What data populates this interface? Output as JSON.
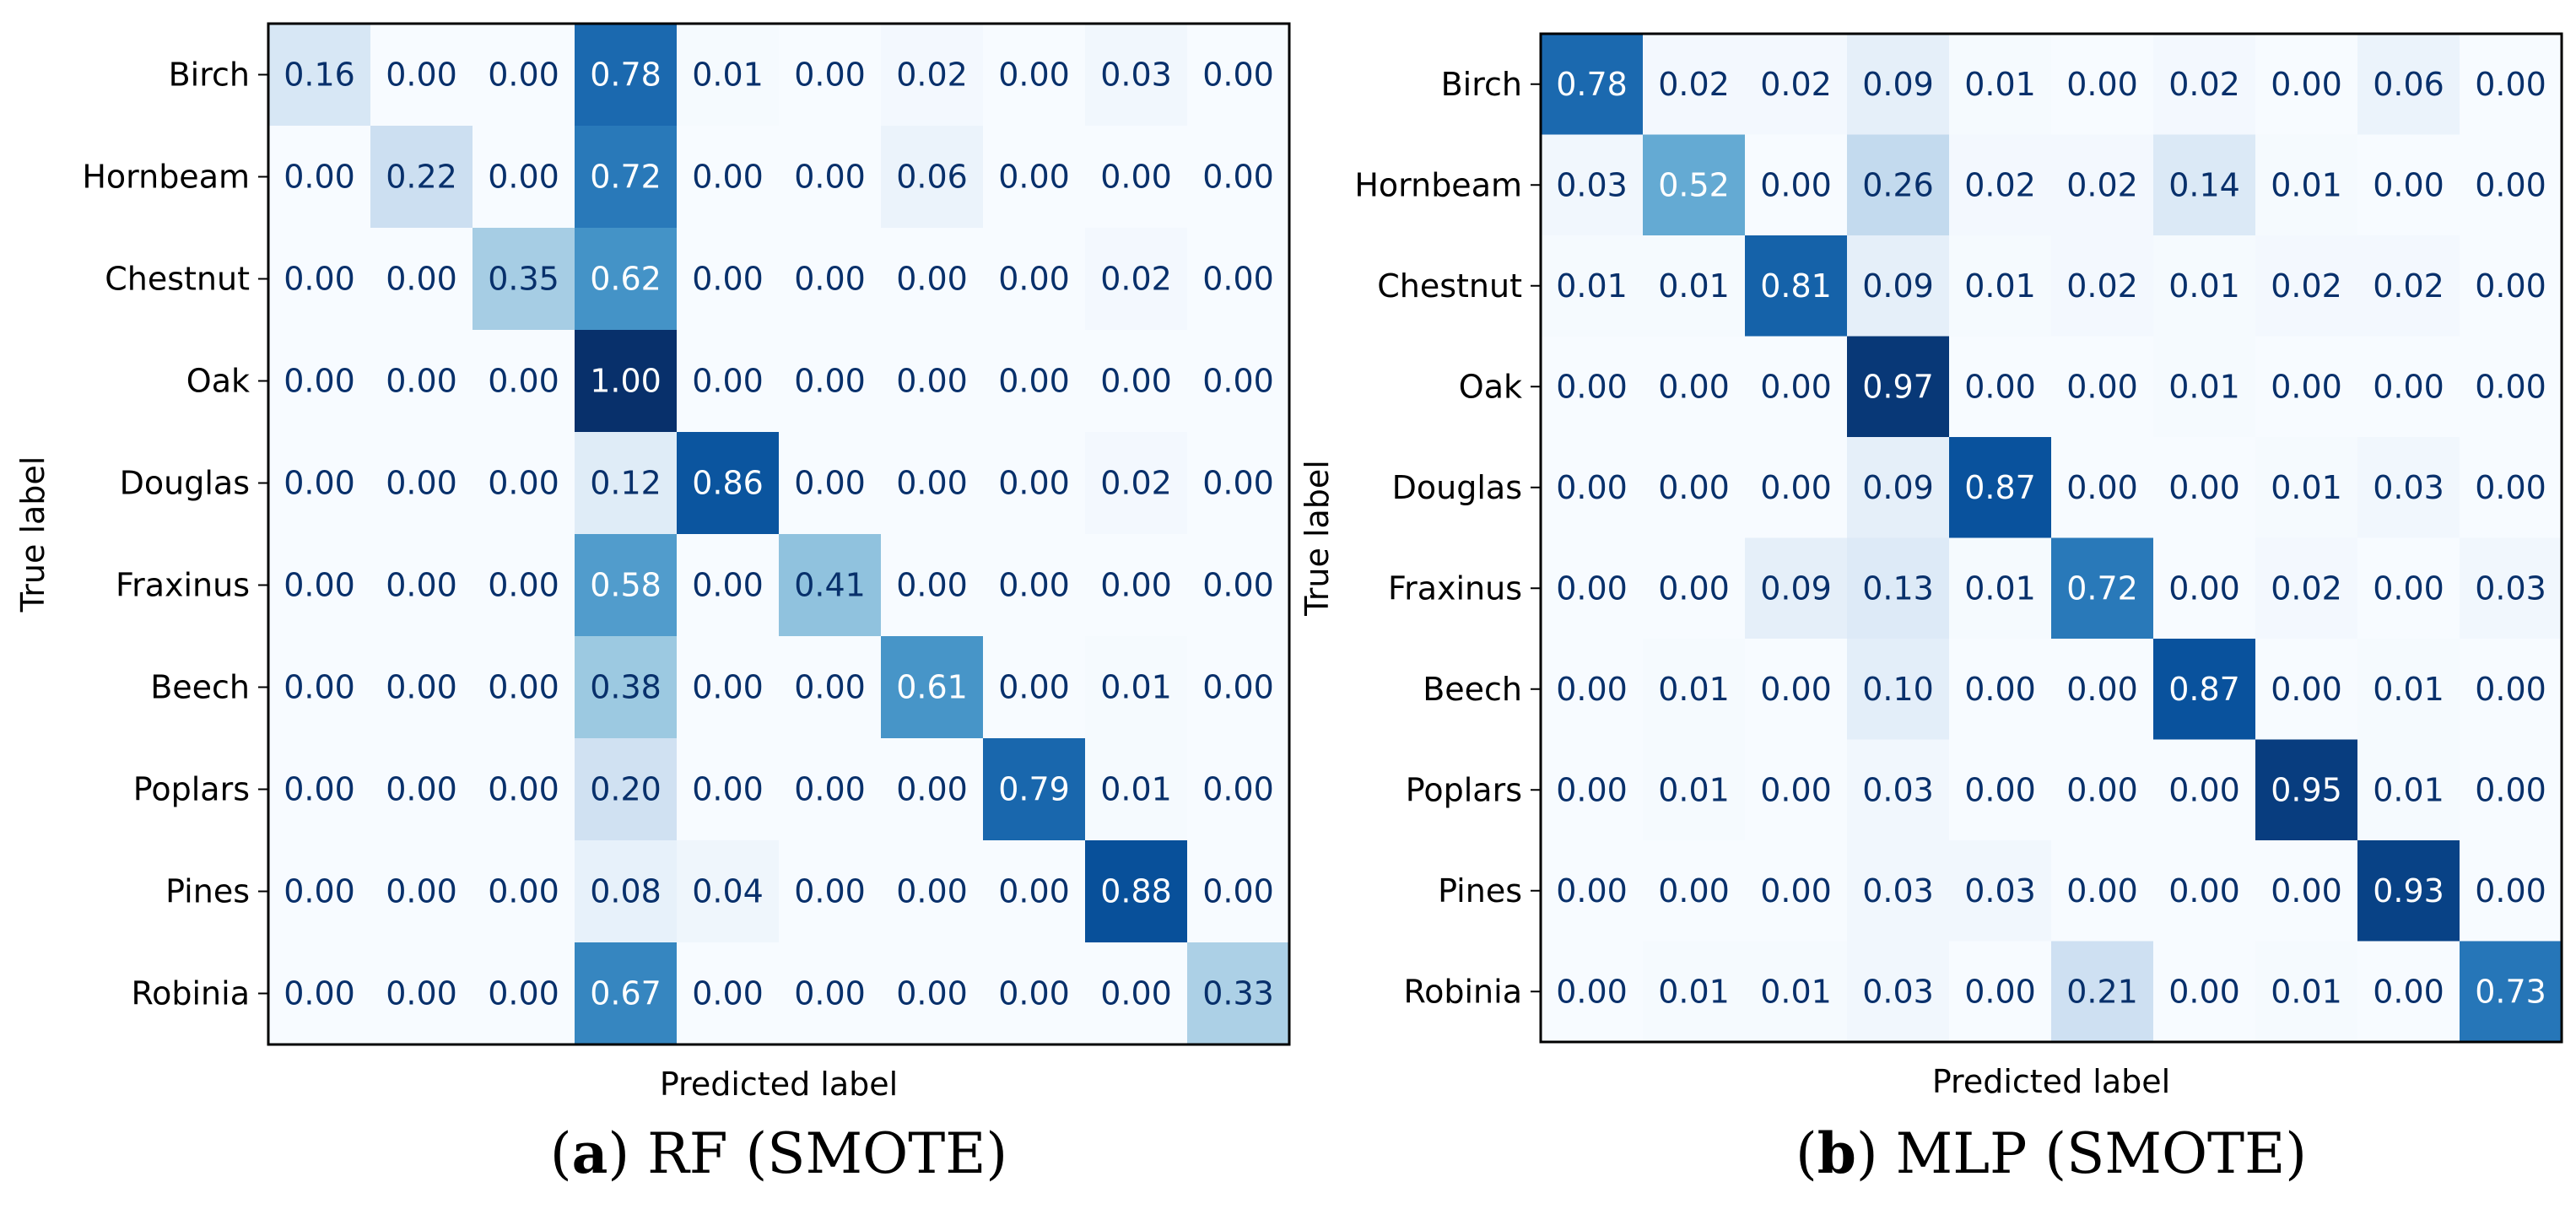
{
  "chart_data": [
    {
      "type": "heatmap",
      "panel_letter": "a",
      "caption": "RF (SMOTE)",
      "xlabel": "Predicted label",
      "ylabel": "True label",
      "row_labels": [
        "Birch",
        "Hornbeam",
        "Chestnut",
        "Oak",
        "Douglas",
        "Fraxinus",
        "Beech",
        "Poplars",
        "Pines",
        "Robinia"
      ],
      "value_range": [
        0,
        1
      ],
      "colormap": "Blues",
      "values": [
        [
          0.16,
          0.0,
          0.0,
          0.78,
          0.01,
          0.0,
          0.02,
          0.0,
          0.03,
          0.0
        ],
        [
          0.0,
          0.22,
          0.0,
          0.72,
          0.0,
          0.0,
          0.06,
          0.0,
          0.0,
          0.0
        ],
        [
          0.0,
          0.0,
          0.35,
          0.62,
          0.0,
          0.0,
          0.0,
          0.0,
          0.02,
          0.0
        ],
        [
          0.0,
          0.0,
          0.0,
          1.0,
          0.0,
          0.0,
          0.0,
          0.0,
          0.0,
          0.0
        ],
        [
          0.0,
          0.0,
          0.0,
          0.12,
          0.86,
          0.0,
          0.0,
          0.0,
          0.02,
          0.0
        ],
        [
          0.0,
          0.0,
          0.0,
          0.58,
          0.0,
          0.41,
          0.0,
          0.0,
          0.0,
          0.0
        ],
        [
          0.0,
          0.0,
          0.0,
          0.38,
          0.0,
          0.0,
          0.61,
          0.0,
          0.01,
          0.0
        ],
        [
          0.0,
          0.0,
          0.0,
          0.2,
          0.0,
          0.0,
          0.0,
          0.79,
          0.01,
          0.0
        ],
        [
          0.0,
          0.0,
          0.0,
          0.08,
          0.04,
          0.0,
          0.0,
          0.0,
          0.88,
          0.0
        ],
        [
          0.0,
          0.0,
          0.0,
          0.67,
          0.0,
          0.0,
          0.0,
          0.0,
          0.0,
          0.33
        ]
      ]
    },
    {
      "type": "heatmap",
      "panel_letter": "b",
      "caption": "MLP (SMOTE)",
      "xlabel": "Predicted label",
      "ylabel": "True label",
      "row_labels": [
        "Birch",
        "Hornbeam",
        "Chestnut",
        "Oak",
        "Douglas",
        "Fraxinus",
        "Beech",
        "Poplars",
        "Pines",
        "Robinia"
      ],
      "value_range": [
        0,
        1
      ],
      "colormap": "Blues",
      "values": [
        [
          0.78,
          0.02,
          0.02,
          0.09,
          0.01,
          0.0,
          0.02,
          0.0,
          0.06,
          0.0
        ],
        [
          0.03,
          0.52,
          0.0,
          0.26,
          0.02,
          0.02,
          0.14,
          0.01,
          0.0,
          0.0
        ],
        [
          0.01,
          0.01,
          0.81,
          0.09,
          0.01,
          0.02,
          0.01,
          0.02,
          0.02,
          0.0
        ],
        [
          0.0,
          0.0,
          0.0,
          0.97,
          0.0,
          0.0,
          0.01,
          0.0,
          0.0,
          0.0
        ],
        [
          0.0,
          0.0,
          0.0,
          0.09,
          0.87,
          0.0,
          0.0,
          0.01,
          0.03,
          0.0
        ],
        [
          0.0,
          0.0,
          0.09,
          0.13,
          0.01,
          0.72,
          0.0,
          0.02,
          0.0,
          0.03
        ],
        [
          0.0,
          0.01,
          0.0,
          0.1,
          0.0,
          0.0,
          0.87,
          0.0,
          0.01,
          0.0
        ],
        [
          0.0,
          0.01,
          0.0,
          0.03,
          0.0,
          0.0,
          0.0,
          0.95,
          0.01,
          0.0
        ],
        [
          0.0,
          0.0,
          0.0,
          0.03,
          0.03,
          0.0,
          0.0,
          0.0,
          0.93,
          0.0
        ],
        [
          0.0,
          0.01,
          0.01,
          0.03,
          0.0,
          0.21,
          0.0,
          0.01,
          0.0,
          0.73
        ]
      ]
    }
  ],
  "colors": {
    "blues_low": "#f7fbff",
    "blues_ramp": [
      "#f7fbff",
      "#deebf7",
      "#c6dbef",
      "#9ecae1",
      "#6baed6",
      "#4292c6",
      "#2171b5",
      "#08519c",
      "#08306b"
    ],
    "text_dark": "#08306b",
    "text_light": "#ffffff",
    "frame": "#000000"
  }
}
